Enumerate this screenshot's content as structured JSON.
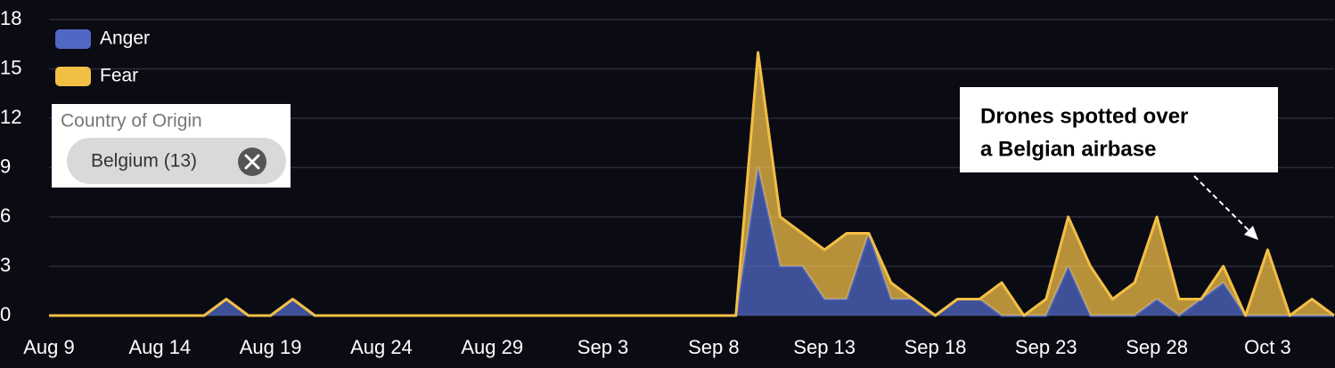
{
  "chart_data": {
    "type": "stacked_area",
    "categories": [
      "Aug 9",
      null,
      null,
      null,
      null,
      "Aug 14",
      null,
      null,
      null,
      null,
      "Aug 19",
      null,
      null,
      null,
      null,
      "Aug 24",
      null,
      null,
      null,
      null,
      "Aug 29",
      null,
      null,
      null,
      null,
      "Sep 3",
      null,
      null,
      null,
      null,
      "Sep 8",
      null,
      null,
      null,
      null,
      "Sep 13",
      null,
      null,
      null,
      null,
      "Sep 18",
      null,
      null,
      null,
      null,
      "Sep 23",
      null,
      null,
      null,
      null,
      "Sep 28",
      null,
      null,
      null,
      null,
      "Oct 3",
      null,
      null,
      null
    ],
    "series": [
      {
        "name": "Anger",
        "color": "#5068c4",
        "values": [
          0,
          0,
          0,
          0,
          0,
          0,
          0,
          0,
          1,
          0,
          0,
          1,
          0,
          0,
          0,
          0,
          0,
          0,
          0,
          0,
          0,
          0,
          0,
          0,
          0,
          0,
          0,
          0,
          0,
          0,
          0,
          0,
          9,
          3,
          3,
          1,
          1,
          5,
          1,
          1,
          0,
          1,
          1,
          0,
          0,
          0,
          3,
          0,
          0,
          0,
          1,
          0,
          1,
          2,
          0,
          0,
          0,
          0,
          0
        ]
      },
      {
        "name": "Fear",
        "color": "#f2bf45",
        "values": [
          0,
          0,
          0,
          0,
          0,
          0,
          0,
          0,
          0,
          0,
          0,
          0,
          0,
          0,
          0,
          0,
          0,
          0,
          0,
          0,
          0,
          0,
          0,
          0,
          0,
          0,
          0,
          0,
          0,
          0,
          0,
          0,
          7,
          3,
          2,
          3,
          4,
          0,
          1,
          0,
          0,
          0,
          0,
          2,
          0,
          1,
          3,
          3,
          1,
          2,
          5,
          1,
          0,
          1,
          0,
          4,
          0,
          1,
          0
        ]
      }
    ],
    "ylim": [
      0,
      18
    ],
    "yticks": [
      0,
      3,
      6,
      9,
      12,
      15,
      18
    ],
    "grid": true,
    "legend": "top-left",
    "filter": {
      "label": "Country of Origin",
      "chip": "Belgium (13)"
    },
    "annotation": [
      "Drones spotted over",
      "a Belgian airbase"
    ]
  }
}
